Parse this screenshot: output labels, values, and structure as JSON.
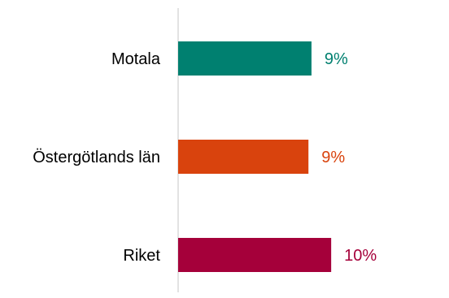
{
  "chart_data": {
    "type": "bar",
    "orientation": "horizontal",
    "categories": [
      "Motala",
      "Östergötlands län",
      "Riket"
    ],
    "values": [
      8.8,
      8.6,
      10.1
    ],
    "data_labels": [
      "9%",
      "9%",
      "10%"
    ],
    "colors": [
      "#008070",
      "#D9430D",
      "#A5003A"
    ],
    "axis_color": "#D9D9D9",
    "xlim": [
      0,
      17.5
    ],
    "grid": false,
    "legend": "none",
    "title": "",
    "xlabel": "",
    "ylabel": ""
  }
}
